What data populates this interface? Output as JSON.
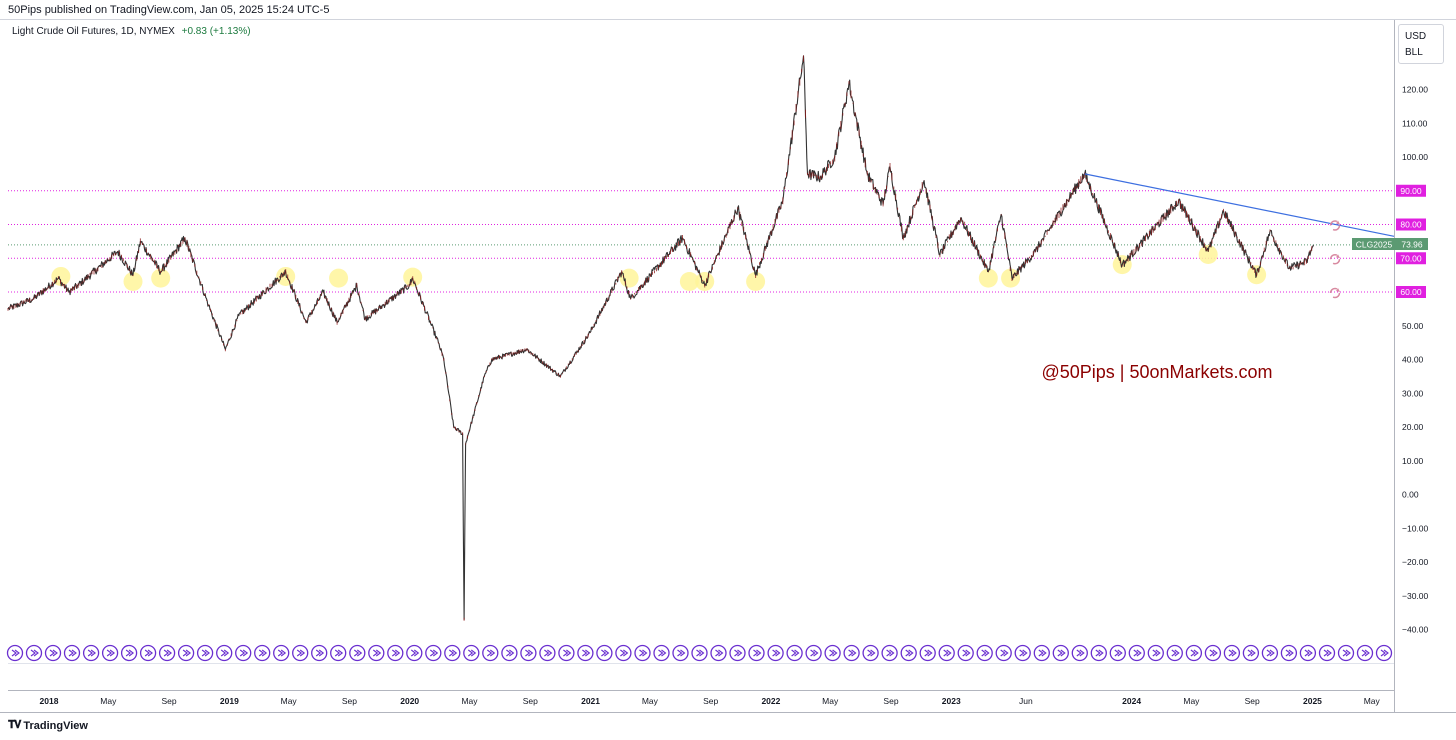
{
  "header": {
    "published_text": "50Pips published on TradingView.com, Jan 05, 2025 15:24 UTC-5"
  },
  "symbol": {
    "name": "Light Crude Oil Futures, 1D, NYMEX",
    "change": "+0.83 (+1.13%)"
  },
  "unit_box": {
    "currency": "USD",
    "unit": "BLL"
  },
  "watermark": "@50Pips | 50onMarkets.com",
  "footer": {
    "brand": "TradingView"
  },
  "price_tag": {
    "ticker": "CLG2025",
    "value": "73.96"
  },
  "colors": {
    "candle_up": "#333333",
    "candle_down": "#8b1a1a",
    "level_line": "#e020e0",
    "trendline": "#3d6fe0",
    "highlight": "#fff59a",
    "watermark": "#8b0000",
    "current_price": "#5b9a72",
    "event_icon": "#6a2fd0",
    "alert_icon": "#d88aa0"
  },
  "chart_data": {
    "type": "line",
    "title": "Light Crude Oil Futures, 1D, NYMEX",
    "x_range": [
      "2017-10-10",
      "2025-06-15"
    ],
    "ylim": [
      -43,
      142
    ],
    "y_ticks": [
      120,
      110,
      100,
      90,
      80,
      70,
      60,
      50,
      40,
      30,
      20,
      10,
      0,
      -10,
      -20,
      -30,
      -40
    ],
    "y_tick_labels": [
      "120.00",
      "110.00",
      "100.00",
      "90.00",
      "80.00",
      "70.00",
      "60.00",
      "50.00",
      "40.00",
      "30.00",
      "20.00",
      "10.00",
      "0.00",
      "−10.00",
      "−20.00",
      "−30.00",
      "−40.00"
    ],
    "highlighted_levels": [
      {
        "value": 90,
        "label": "90.00"
      },
      {
        "value": 80,
        "label": "80.00"
      },
      {
        "value": 70,
        "label": "70.00"
      },
      {
        "value": 60,
        "label": "60.00"
      }
    ],
    "current_price": 73.96,
    "x_ticks": [
      {
        "date": "2018-01-01",
        "label": "2018"
      },
      {
        "date": "2018-05-01",
        "label": "May"
      },
      {
        "date": "2018-09-01",
        "label": "Sep"
      },
      {
        "date": "2019-01-01",
        "label": "2019"
      },
      {
        "date": "2019-05-01",
        "label": "May"
      },
      {
        "date": "2019-09-01",
        "label": "Sep"
      },
      {
        "date": "2020-01-01",
        "label": "2020"
      },
      {
        "date": "2020-05-01",
        "label": "May"
      },
      {
        "date": "2020-09-01",
        "label": "Sep"
      },
      {
        "date": "2021-01-01",
        "label": "2021"
      },
      {
        "date": "2021-05-01",
        "label": "May"
      },
      {
        "date": "2021-09-01",
        "label": "Sep"
      },
      {
        "date": "2022-01-01",
        "label": "2022"
      },
      {
        "date": "2022-05-01",
        "label": "May"
      },
      {
        "date": "2022-09-01",
        "label": "Sep"
      },
      {
        "date": "2023-01-01",
        "label": "2023"
      },
      {
        "date": "2023-06-01",
        "label": "Jun"
      },
      {
        "date": "2024-01-01",
        "label": "2024"
      },
      {
        "date": "2024-05-01",
        "label": "May"
      },
      {
        "date": "2024-09-01",
        "label": "Sep"
      },
      {
        "date": "2025-01-01",
        "label": "2025"
      },
      {
        "date": "2025-05-01",
        "label": "May"
      }
    ],
    "price_points": [
      [
        "2017-10-10",
        55
      ],
      [
        "2017-12-01",
        58
      ],
      [
        "2018-01-20",
        64
      ],
      [
        "2018-02-10",
        60
      ],
      [
        "2018-03-01",
        62
      ],
      [
        "2018-05-20",
        72
      ],
      [
        "2018-06-20",
        65
      ],
      [
        "2018-07-05",
        75
      ],
      [
        "2018-08-15",
        66
      ],
      [
        "2018-10-03",
        76
      ],
      [
        "2018-11-20",
        56
      ],
      [
        "2018-12-24",
        43
      ],
      [
        "2019-01-20",
        53
      ],
      [
        "2019-04-25",
        66
      ],
      [
        "2019-06-05",
        51
      ],
      [
        "2019-07-10",
        60
      ],
      [
        "2019-08-07",
        51
      ],
      [
        "2019-09-16",
        62
      ],
      [
        "2019-10-03",
        52
      ],
      [
        "2019-12-31",
        62
      ],
      [
        "2020-01-07",
        64
      ],
      [
        "2020-02-28",
        45
      ],
      [
        "2020-03-10",
        40
      ],
      [
        "2020-03-30",
        20
      ],
      [
        "2020-04-17",
        18
      ],
      [
        "2020-04-20",
        -37
      ],
      [
        "2020-04-23",
        15
      ],
      [
        "2020-05-31",
        35
      ],
      [
        "2020-06-15",
        40
      ],
      [
        "2020-08-25",
        43
      ],
      [
        "2020-11-01",
        35
      ],
      [
        "2020-12-31",
        48
      ],
      [
        "2021-03-05",
        66
      ],
      [
        "2021-03-23",
        58
      ],
      [
        "2021-07-06",
        76
      ],
      [
        "2021-08-20",
        62
      ],
      [
        "2021-10-26",
        85
      ],
      [
        "2021-12-01",
        65
      ],
      [
        "2022-01-25",
        87
      ],
      [
        "2022-03-08",
        130
      ],
      [
        "2022-03-16",
        95
      ],
      [
        "2022-04-11",
        94
      ],
      [
        "2022-05-10",
        100
      ],
      [
        "2022-06-08",
        122
      ],
      [
        "2022-07-15",
        95
      ],
      [
        "2022-08-16",
        86
      ],
      [
        "2022-08-30",
        97
      ],
      [
        "2022-09-26",
        76
      ],
      [
        "2022-11-07",
        93
      ],
      [
        "2022-12-09",
        71
      ],
      [
        "2023-01-20",
        82
      ],
      [
        "2023-03-17",
        66
      ],
      [
        "2023-04-12",
        83
      ],
      [
        "2023-05-04",
        64
      ],
      [
        "2023-06-20",
        72
      ],
      [
        "2023-09-28",
        95
      ],
      [
        "2023-12-13",
        68
      ],
      [
        "2024-04-05",
        87
      ],
      [
        "2024-06-04",
        72
      ],
      [
        "2024-07-05",
        84
      ],
      [
        "2024-09-10",
        65
      ],
      [
        "2024-10-07",
        78
      ],
      [
        "2024-11-15",
        67
      ],
      [
        "2024-12-20",
        69
      ],
      [
        "2025-01-03",
        73.96
      ]
    ],
    "trendline": {
      "from": [
        "2023-09-28",
        95
      ],
      "to": [
        "2025-06-15",
        76.5
      ]
    },
    "support_touches": [
      [
        "2018-01-25",
        65.5
      ],
      [
        "2018-06-20",
        64
      ],
      [
        "2018-08-15",
        65
      ],
      [
        "2019-04-25",
        65.5
      ],
      [
        "2019-08-10",
        65
      ],
      [
        "2020-01-07",
        65.3
      ],
      [
        "2021-03-20",
        65
      ],
      [
        "2021-07-20",
        64
      ],
      [
        "2021-08-20",
        64
      ],
      [
        "2021-12-01",
        64
      ],
      [
        "2023-03-17",
        65
      ],
      [
        "2023-05-01",
        65
      ],
      [
        "2023-12-13",
        69
      ],
      [
        "2024-06-04",
        72
      ],
      [
        "2024-09-10",
        66
      ]
    ],
    "event_marker_count": 73,
    "alert_marker_levels": [
      80,
      70,
      60
    ]
  }
}
